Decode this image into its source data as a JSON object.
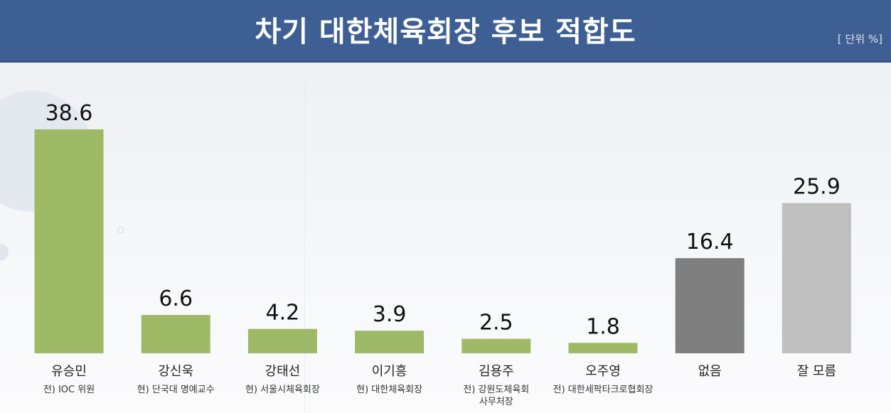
{
  "header": {
    "title": "차기 대한체육회장 후보 적합도",
    "unit": "[ 단위 %]"
  },
  "chart_data": {
    "type": "bar",
    "title": "차기 대한체육회장 후보 적합도",
    "unit_label": "[ 단위 %]",
    "categories": [
      "유승민",
      "강신욱",
      "강태선",
      "이기흥",
      "김용주",
      "오주영",
      "없음",
      "잘 모름"
    ],
    "sublabels": [
      [
        "전) IOC 위원"
      ],
      [
        "현) 단국대 명예교수"
      ],
      [
        "현) 서울시체육회장"
      ],
      [
        "현) 대한체육회장"
      ],
      [
        "전) 강원도체육회",
        "사무처장"
      ],
      [
        "전) 대한세팍타크로협회장"
      ],
      [],
      []
    ],
    "values": [
      38.6,
      6.6,
      4.2,
      3.9,
      2.5,
      1.8,
      16.4,
      25.9
    ],
    "value_labels": [
      "38.6",
      "6.6",
      "4.2",
      "3.9",
      "2.5",
      "1.8",
      "16.4",
      "25.9"
    ],
    "bar_colors": [
      "#9fba66",
      "#9fba66",
      "#9fba66",
      "#9fba66",
      "#9fba66",
      "#9fba66",
      "#7f7f7f",
      "#bfbfbf"
    ],
    "ylim": [
      0,
      38.6
    ],
    "grid": false,
    "legend": "none"
  }
}
